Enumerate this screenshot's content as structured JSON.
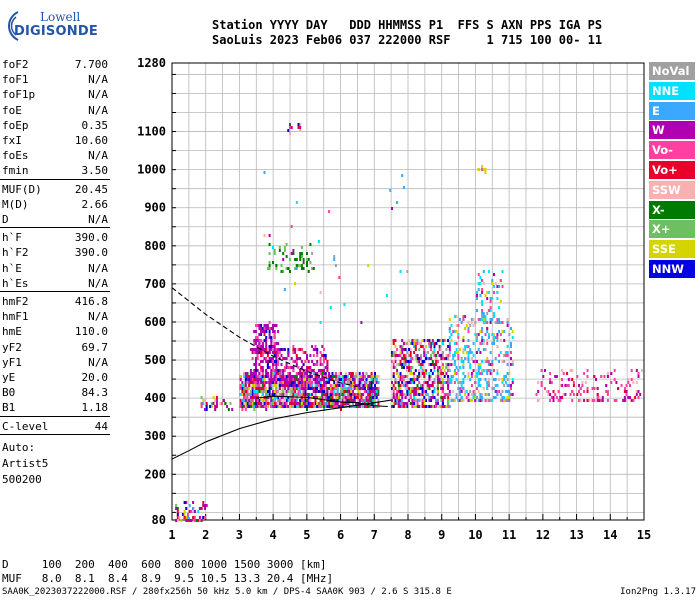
{
  "logo": {
    "line1": "Lowell",
    "line2": "DIGISONDE"
  },
  "header": {
    "line1": "Station YYYY DAY   DDD HHMMSS P1  FFS S AXN PPS IGA PS",
    "line2": "SaoLuis 2023 Feb06 037 222000 RSF     1 715 100 00- 11"
  },
  "params": [
    {
      "k": "foF2",
      "v": "7.700"
    },
    {
      "k": "foF1",
      "v": "N/A"
    },
    {
      "k": "foF1p",
      "v": "N/A"
    },
    {
      "k": "foE",
      "v": "N/A"
    },
    {
      "k": "foEp",
      "v": "0.35"
    },
    {
      "k": "fxI",
      "v": "10.60"
    },
    {
      "k": "foEs",
      "v": "N/A"
    },
    {
      "k": "fmin",
      "v": "3.50"
    },
    {
      "k": "MUF(D)",
      "v": "20.45"
    },
    {
      "k": "M(D)",
      "v": "2.66"
    },
    {
      "k": "D",
      "v": "N/A"
    },
    {
      "k": "h`F",
      "v": "390.0"
    },
    {
      "k": "h`F2",
      "v": "390.0"
    },
    {
      "k": "h`E",
      "v": "N/A"
    },
    {
      "k": "h`Es",
      "v": "N/A"
    },
    {
      "k": "hmF2",
      "v": "416.8"
    },
    {
      "k": "hmF1",
      "v": "N/A"
    },
    {
      "k": "hmE",
      "v": "110.0"
    },
    {
      "k": "yF2",
      "v": "69.7"
    },
    {
      "k": "yF1",
      "v": "N/A"
    },
    {
      "k": "yE",
      "v": "20.0"
    },
    {
      "k": "B0",
      "v": "84.3"
    },
    {
      "k": "B1",
      "v": "1.18"
    },
    {
      "k": "C-level",
      "v": "44"
    }
  ],
  "auto": {
    "line1": "Auto:",
    "line2": "Artist5",
    "line3": "500200"
  },
  "legend": [
    {
      "label": "NoVal",
      "color": "#a0a0a0"
    },
    {
      "label": "NNE",
      "color": "#00e0ff"
    },
    {
      "label": "E",
      "color": "#3aa8ff"
    },
    {
      "label": "W",
      "color": "#b000b0"
    },
    {
      "label": "Vo-",
      "color": "#ff40a0"
    },
    {
      "label": "Vo+",
      "color": "#e8002a"
    },
    {
      "label": "SSW",
      "color": "#f8b0b0"
    },
    {
      "label": "X-",
      "color": "#007a00"
    },
    {
      "label": "X+",
      "color": "#6cc060"
    },
    {
      "label": "SSE",
      "color": "#d4d400"
    },
    {
      "label": "NNW",
      "color": "#0000e0"
    }
  ],
  "dmuf": {
    "line1": "D     100  200  400  600  800 1000 1500 3000 [km]",
    "line2": "MUF   8.0  8.1  8.4  8.9  9.5 10.5 13.3 20.4 [MHz]"
  },
  "footer": {
    "text": "SAA0K_2023037222000.RSF / 280fx256h 50 kHz 5.0 km / DPS-4 SAA0K 903 / 2.6 S 315.8 E",
    "version": "Ion2Png 1.3.17"
  },
  "chart_data": {
    "type": "scatter",
    "xlim": [
      1,
      15
    ],
    "ylim": [
      80,
      1280
    ],
    "xticks": [
      1,
      2,
      3,
      4,
      5,
      6,
      7,
      8,
      9,
      10,
      11,
      12,
      13,
      14,
      15
    ],
    "yticks": [
      80,
      200,
      300,
      400,
      500,
      600,
      700,
      800,
      900,
      1000,
      1100,
      1280
    ],
    "grid": true,
    "legend_placement": "right",
    "traces": [
      {
        "style": "solid",
        "x": [
          1.0,
          1.5,
          2.0,
          3.0,
          4.0,
          5.0,
          6.0,
          7.0,
          7.5
        ],
        "y": [
          240,
          262,
          285,
          320,
          345,
          362,
          375,
          388,
          395
        ]
      },
      {
        "style": "solid",
        "x": [
          3.5,
          4.0,
          5.0,
          6.0,
          6.5,
          7.0,
          7.4
        ],
        "y": [
          400,
          405,
          402,
          390,
          388,
          380,
          378
        ]
      },
      {
        "style": "dashed",
        "x": [
          1.0,
          1.5,
          2.0,
          3.0,
          4.0,
          5.0,
          6.0,
          6.5
        ],
        "y": [
          690,
          655,
          620,
          560,
          510,
          470,
          440,
          430
        ]
      }
    ],
    "clusters": [
      {
        "x": [
          3.0,
          7.1
        ],
        "y": [
          378,
          470
        ],
        "n": 1800,
        "mix": "main"
      },
      {
        "x": [
          3.3,
          5.6
        ],
        "y": [
          440,
          540
        ],
        "n": 420,
        "mix": "magenta"
      },
      {
        "x": [
          3.4,
          4.1
        ],
        "y": [
          520,
          600
        ],
        "n": 160,
        "mix": "magenta"
      },
      {
        "x": [
          7.5,
          9.2
        ],
        "y": [
          380,
          560
        ],
        "n": 700,
        "mix": "main"
      },
      {
        "x": [
          9.2,
          11.1
        ],
        "y": [
          395,
          620
        ],
        "n": 420,
        "mix": "light"
      },
      {
        "x": [
          10.0,
          10.8
        ],
        "y": [
          600,
          740
        ],
        "n": 70,
        "mix": "light"
      },
      {
        "x": [
          11.8,
          14.9
        ],
        "y": [
          395,
          480
        ],
        "n": 160,
        "mix": "pinkmag"
      },
      {
        "x": [
          1.1,
          2.0
        ],
        "y": [
          80,
          130
        ],
        "n": 60,
        "mix": "main"
      },
      {
        "x": [
          3.8,
          5.2
        ],
        "y": [
          740,
          810
        ],
        "n": 60,
        "mix": "green"
      },
      {
        "x": [
          4.4,
          4.8
        ],
        "y": [
          1100,
          1130
        ],
        "n": 12,
        "mix": "main"
      },
      {
        "x": [
          10.0,
          10.3
        ],
        "y": [
          998,
          1010
        ],
        "n": 10,
        "mix": "yellow"
      },
      {
        "x": [
          1.8,
          2.8
        ],
        "y": [
          375,
          405
        ],
        "n": 40,
        "mix": "main"
      },
      {
        "x": [
          2.9,
          8.0
        ],
        "y": [
          600,
          1000
        ],
        "n": 30,
        "mix": "light"
      }
    ]
  }
}
